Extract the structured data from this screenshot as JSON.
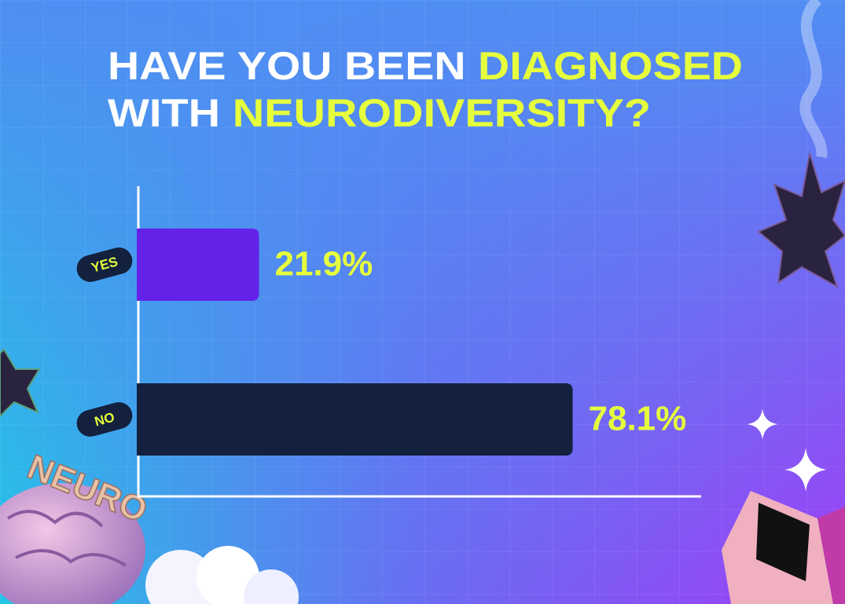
{
  "chart_data": {
    "type": "bar",
    "orientation": "horizontal",
    "title": [
      [
        {
          "text": "HAVE YOU BEEN",
          "color": "#ffffff"
        },
        {
          "text": "DIAGNOSED",
          "color": "#e6ff3c"
        }
      ],
      [
        {
          "text": "WITH",
          "color": "#ffffff"
        },
        {
          "text": "NEURODIVERSITY?",
          "color": "#e6ff3c"
        }
      ]
    ],
    "categories": [
      "YES",
      "NO"
    ],
    "series": [
      {
        "colors": [
          "#6421e8",
          "#13213f"
        ],
        "values": [
          21.9,
          78.1
        ],
        "value_labels": [
          "21.9%",
          "78.1%"
        ]
      }
    ],
    "label_color": "#e6ff3c",
    "sticker": "NEURO"
  }
}
